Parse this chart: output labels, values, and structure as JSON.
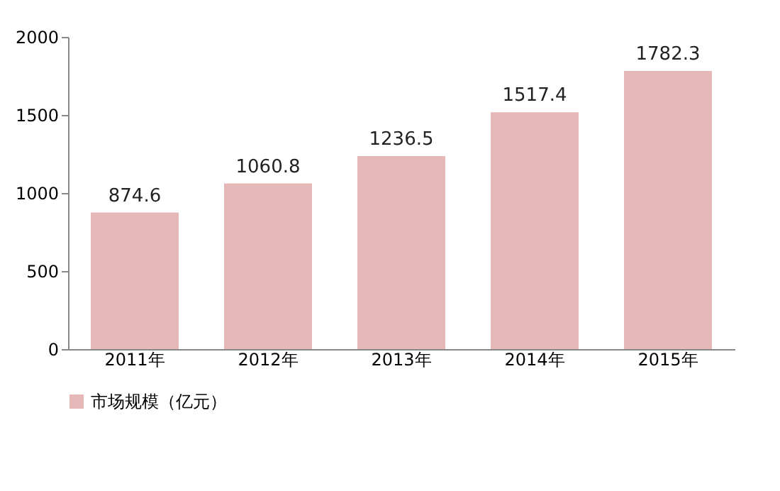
{
  "chart_data": {
    "type": "bar",
    "categories": [
      "2011年",
      "2012年",
      "2013年",
      "2014年",
      "2015年"
    ],
    "series": [
      {
        "name": "市场规模（亿元）",
        "color": "#e6b8b7",
        "values": [
          874.6,
          1060.8,
          1236.5,
          1517.4,
          1782.3
        ]
      }
    ],
    "ylim": [
      0,
      2000
    ],
    "yticks": [
      0,
      500,
      1000,
      1500,
      2000
    ],
    "data_labels": true,
    "grid": false,
    "legend": "bottom left"
  }
}
